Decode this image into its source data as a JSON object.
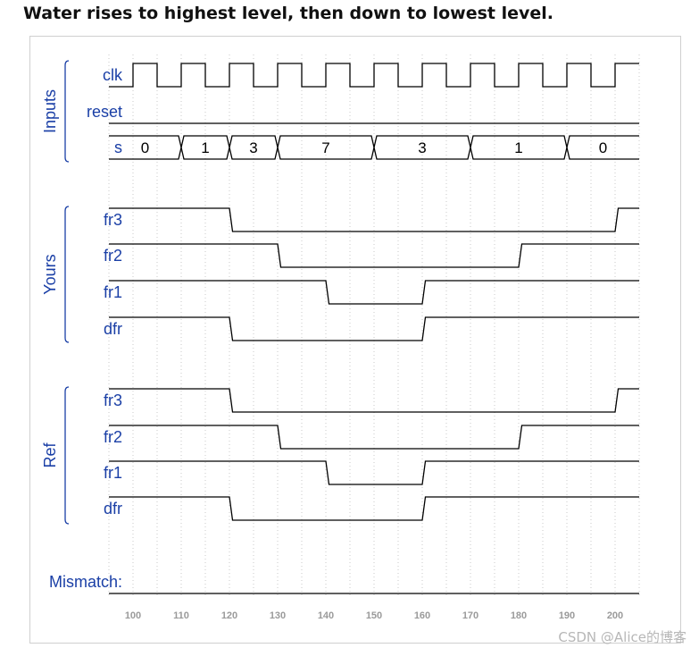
{
  "title": "Water rises to highest level, then down to lowest level.",
  "watermark": "CSDN @Alice的博客",
  "chart_data": {
    "type": "timing-diagram",
    "x_axis": {
      "ticks": [
        100,
        110,
        120,
        130,
        140,
        150,
        160,
        170,
        180,
        190,
        200
      ],
      "range": [
        95,
        205
      ]
    },
    "groups": [
      {
        "label": "Inputs",
        "signals": [
          "clk",
          "reset",
          "s"
        ]
      },
      {
        "label": "Yours",
        "signals": [
          "fr3",
          "fr2",
          "fr1",
          "dfr"
        ]
      },
      {
        "label": "Ref",
        "signals": [
          "fr3",
          "fr2",
          "fr1",
          "dfr"
        ]
      }
    ],
    "signals": {
      "clk": {
        "label": "clk",
        "clock": {
          "first_rise": 100,
          "period": 10
        }
      },
      "reset": {
        "label": "reset",
        "initial": 0,
        "transitions": []
      },
      "s": {
        "label": "s",
        "bus": [
          {
            "from": 95,
            "to": 110,
            "value": "0"
          },
          {
            "from": 110,
            "to": 120,
            "value": "1"
          },
          {
            "from": 120,
            "to": 130,
            "value": "3"
          },
          {
            "from": 130,
            "to": 150,
            "value": "7"
          },
          {
            "from": 150,
            "to": 170,
            "value": "3"
          },
          {
            "from": 170,
            "to": 190,
            "value": "1"
          },
          {
            "from": 190,
            "to": 205,
            "value": "0"
          }
        ]
      },
      "yours_fr3": {
        "label": "fr3",
        "initial": 1,
        "transitions": [
          [
            120,
            0
          ],
          [
            200,
            1
          ]
        ]
      },
      "yours_fr2": {
        "label": "fr2",
        "initial": 1,
        "transitions": [
          [
            130,
            0
          ],
          [
            180,
            1
          ]
        ]
      },
      "yours_fr1": {
        "label": "fr1",
        "initial": 1,
        "transitions": [
          [
            140,
            0
          ],
          [
            160,
            1
          ]
        ]
      },
      "yours_dfr": {
        "label": "dfr",
        "initial": 1,
        "transitions": [
          [
            120,
            0
          ],
          [
            160,
            1
          ]
        ]
      },
      "ref_fr3": {
        "label": "fr3",
        "initial": 1,
        "transitions": [
          [
            120,
            0
          ],
          [
            200,
            1
          ]
        ]
      },
      "ref_fr2": {
        "label": "fr2",
        "initial": 1,
        "transitions": [
          [
            130,
            0
          ],
          [
            180,
            1
          ]
        ]
      },
      "ref_fr1": {
        "label": "fr1",
        "initial": 1,
        "transitions": [
          [
            140,
            0
          ],
          [
            160,
            1
          ]
        ]
      },
      "ref_dfr": {
        "label": "dfr",
        "initial": 1,
        "transitions": [
          [
            120,
            0
          ],
          [
            160,
            1
          ]
        ]
      },
      "mismatch": {
        "label": "Mismatch:",
        "initial": 0,
        "transitions": []
      }
    },
    "colors": {
      "label": "#1a3fa6",
      "trace": "#000000",
      "grid": "#c8c8c8",
      "tick": "#9a9a9a"
    }
  }
}
